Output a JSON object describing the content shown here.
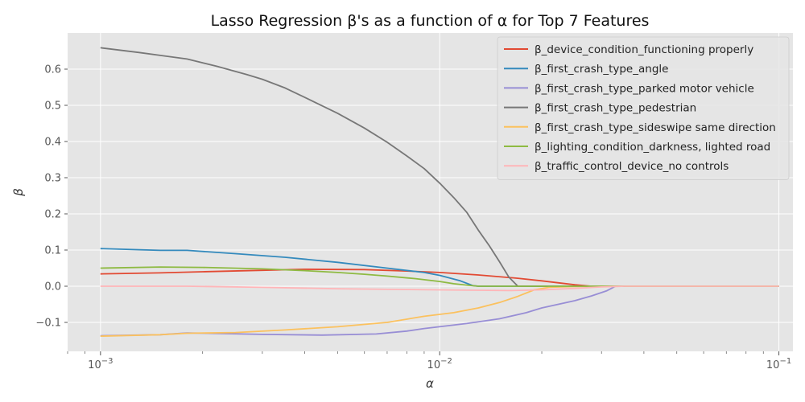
{
  "chart_data": {
    "type": "line",
    "title": "Lasso Regression β's as a function of α for Top 7 Features",
    "xlabel": "α",
    "ylabel": "β",
    "xscale": "log",
    "xlim": [
      0.0008,
      0.11
    ],
    "ylim": [
      -0.18,
      0.7
    ],
    "grid": true,
    "legend_position": "top-right",
    "x_ticks": [
      {
        "value": 0.001,
        "base": "10",
        "exp": "−3"
      },
      {
        "value": 0.01,
        "base": "10",
        "exp": "−2"
      },
      {
        "value": 0.1,
        "base": "10",
        "exp": "−1"
      }
    ],
    "y_ticks": [
      {
        "value": -0.1,
        "label": "−0.1"
      },
      {
        "value": 0.0,
        "label": "0.0"
      },
      {
        "value": 0.1,
        "label": "0.1"
      },
      {
        "value": 0.2,
        "label": "0.2"
      },
      {
        "value": 0.3,
        "label": "0.3"
      },
      {
        "value": 0.4,
        "label": "0.4"
      },
      {
        "value": 0.5,
        "label": "0.5"
      },
      {
        "value": 0.6,
        "label": "0.6"
      }
    ],
    "series": [
      {
        "name": "β_device_condition_functioning properly",
        "color": "#E24A33",
        "points": [
          [
            0.001,
            0.034
          ],
          [
            0.0015,
            0.037
          ],
          [
            0.002,
            0.04
          ],
          [
            0.003,
            0.044
          ],
          [
            0.004,
            0.047
          ],
          [
            0.006,
            0.046
          ],
          [
            0.008,
            0.042
          ],
          [
            0.01,
            0.038
          ],
          [
            0.013,
            0.031
          ],
          [
            0.017,
            0.022
          ],
          [
            0.02,
            0.015
          ],
          [
            0.025,
            0.004
          ],
          [
            0.028,
            0.0
          ],
          [
            0.05,
            0.0
          ],
          [
            0.1,
            0.0
          ]
        ]
      },
      {
        "name": "β_first_crash_type_angle",
        "color": "#348ABD",
        "points": [
          [
            0.001,
            0.104
          ],
          [
            0.0015,
            0.099
          ],
          [
            0.0018,
            0.099
          ],
          [
            0.0025,
            0.09
          ],
          [
            0.0035,
            0.08
          ],
          [
            0.005,
            0.066
          ],
          [
            0.007,
            0.05
          ],
          [
            0.009,
            0.038
          ],
          [
            0.01,
            0.03
          ],
          [
            0.0115,
            0.015
          ],
          [
            0.0125,
            0.002
          ],
          [
            0.013,
            0.0
          ],
          [
            0.05,
            0.0
          ],
          [
            0.1,
            0.0
          ]
        ]
      },
      {
        "name": "β_first_crash_type_parked motor vehicle",
        "color": "#988ED5",
        "points": [
          [
            0.001,
            -0.137
          ],
          [
            0.0015,
            -0.134
          ],
          [
            0.0018,
            -0.129
          ],
          [
            0.003,
            -0.133
          ],
          [
            0.0045,
            -0.135
          ],
          [
            0.0065,
            -0.132
          ],
          [
            0.008,
            -0.124
          ],
          [
            0.009,
            -0.117
          ],
          [
            0.012,
            -0.103
          ],
          [
            0.015,
            -0.09
          ],
          [
            0.018,
            -0.073
          ],
          [
            0.02,
            -0.06
          ],
          [
            0.025,
            -0.04
          ],
          [
            0.028,
            -0.027
          ],
          [
            0.031,
            -0.013
          ],
          [
            0.033,
            0.0
          ],
          [
            0.05,
            0.0
          ],
          [
            0.1,
            0.0
          ]
        ]
      },
      {
        "name": "β_first_crash_type_pedestrian",
        "color": "#777777",
        "points": [
          [
            0.001,
            0.659
          ],
          [
            0.0013,
            0.646
          ],
          [
            0.0015,
            0.638
          ],
          [
            0.0018,
            0.628
          ],
          [
            0.0022,
            0.608
          ],
          [
            0.0027,
            0.585
          ],
          [
            0.003,
            0.572
          ],
          [
            0.0035,
            0.548
          ],
          [
            0.004,
            0.522
          ],
          [
            0.005,
            0.478
          ],
          [
            0.006,
            0.437
          ],
          [
            0.007,
            0.398
          ],
          [
            0.008,
            0.36
          ],
          [
            0.009,
            0.325
          ],
          [
            0.01,
            0.285
          ],
          [
            0.011,
            0.245
          ],
          [
            0.012,
            0.205
          ],
          [
            0.013,
            0.155
          ],
          [
            0.014,
            0.112
          ],
          [
            0.015,
            0.068
          ],
          [
            0.016,
            0.025
          ],
          [
            0.017,
            0.0
          ],
          [
            0.05,
            0.0
          ],
          [
            0.1,
            0.0
          ]
        ]
      },
      {
        "name": "β_first_crash_type_sideswipe same direction",
        "color": "#FBC15E",
        "points": [
          [
            0.001,
            -0.138
          ],
          [
            0.0015,
            -0.134
          ],
          [
            0.0018,
            -0.13
          ],
          [
            0.0025,
            -0.128
          ],
          [
            0.0035,
            -0.121
          ],
          [
            0.005,
            -0.112
          ],
          [
            0.007,
            -0.1
          ],
          [
            0.009,
            -0.083
          ],
          [
            0.011,
            -0.073
          ],
          [
            0.013,
            -0.06
          ],
          [
            0.015,
            -0.045
          ],
          [
            0.017,
            -0.028
          ],
          [
            0.019,
            -0.01
          ],
          [
            0.021,
            -0.003
          ],
          [
            0.025,
            -0.001
          ],
          [
            0.03,
            0.0
          ],
          [
            0.05,
            0.0
          ],
          [
            0.1,
            0.0
          ]
        ]
      },
      {
        "name": "β_lighting_condition_darkness, lighted road",
        "color": "#8EBA42",
        "points": [
          [
            0.001,
            0.05
          ],
          [
            0.0015,
            0.053
          ],
          [
            0.002,
            0.052
          ],
          [
            0.003,
            0.048
          ],
          [
            0.004,
            0.043
          ],
          [
            0.005,
            0.038
          ],
          [
            0.006,
            0.033
          ],
          [
            0.007,
            0.028
          ],
          [
            0.0085,
            0.021
          ],
          [
            0.01,
            0.013
          ],
          [
            0.011,
            0.007
          ],
          [
            0.012,
            0.003
          ],
          [
            0.013,
            0.0
          ],
          [
            0.05,
            0.0
          ],
          [
            0.1,
            0.0
          ]
        ]
      },
      {
        "name": "β_traffic_control_device_no controls",
        "color": "#FFB5B8",
        "points": [
          [
            0.001,
            0.0
          ],
          [
            0.0018,
            0.0
          ],
          [
            0.003,
            -0.003
          ],
          [
            0.005,
            -0.007
          ],
          [
            0.008,
            -0.009
          ],
          [
            0.012,
            -0.011
          ],
          [
            0.016,
            -0.012
          ],
          [
            0.02,
            -0.01
          ],
          [
            0.025,
            -0.006
          ],
          [
            0.03,
            -0.002
          ],
          [
            0.035,
            0.0
          ],
          [
            0.05,
            0.0
          ],
          [
            0.1,
            0.0
          ]
        ]
      }
    ]
  }
}
